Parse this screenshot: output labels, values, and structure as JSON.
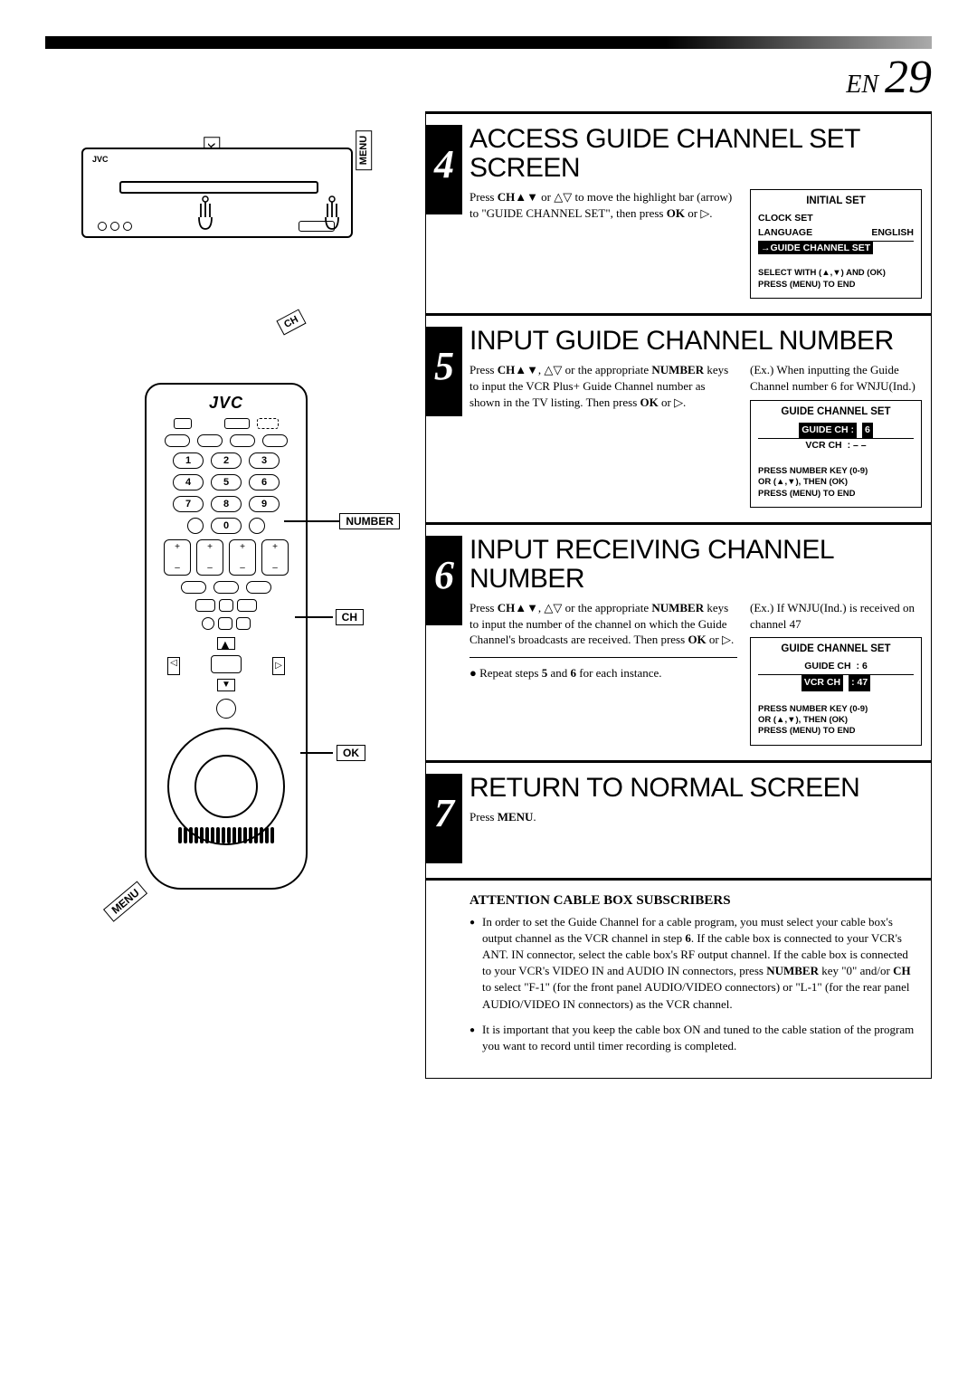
{
  "page": {
    "prefix": "EN",
    "number": "29"
  },
  "vcr": {
    "labels": {
      "ok": "OK",
      "menu": "MENU",
      "ch": "CH",
      "brand": "JVC"
    }
  },
  "remote": {
    "brand": "JVC",
    "callouts": {
      "number": "NUMBER",
      "ch": "CH",
      "ok": "OK",
      "menu": "MENU"
    },
    "numbers": [
      "1",
      "2",
      "3",
      "4",
      "5",
      "6",
      "7",
      "8",
      "9",
      "0"
    ]
  },
  "steps": [
    {
      "num": "4",
      "title": "ACCESS GUIDE CHANNEL SET SCREEN",
      "text": "Press <b>CH</b>▲▼ or △▽ to move the highlight bar (arrow) to \"GUIDE CHANNEL SET\", then press <b>OK</b> or ▷.",
      "osd": {
        "title": "INITIAL SET",
        "lines": [
          {
            "left": "CLOCK SET",
            "right": ""
          },
          {
            "left": "LANGUAGE",
            "right": "ENGLISH",
            "underline": true
          },
          {
            "left": "→GUIDE CHANNEL SET",
            "right": "",
            "hl": true
          }
        ],
        "foot": "SELECT WITH (▲,▼) AND (OK)\nPRESS (MENU) TO END"
      }
    },
    {
      "num": "5",
      "title": "INPUT GUIDE CHANNEL NUMBER",
      "text": "Press <b>CH</b>▲▼, △▽ or the appropriate <b>NUMBER</b> keys to input the VCR Plus+ Guide Channel number as shown in the TV listing. Then press <b>OK</b> or ▷.",
      "example": "(Ex.) When inputting the Guide Channel number 6 for WNJU(Ind.)",
      "osd": {
        "title": "GUIDE CHANNEL SET",
        "lines": [
          {
            "left": "GUIDE CH :",
            "right": "6",
            "hl": true,
            "underline": true
          },
          {
            "left": "VCR CH",
            "right": ": – –"
          }
        ],
        "foot": "PRESS NUMBER KEY (0-9)\nOR (▲,▼),  THEN (OK)\nPRESS (MENU) TO END"
      }
    },
    {
      "num": "6",
      "title": "INPUT RECEIVING CHANNEL NUMBER",
      "text": "Press <b>CH</b>▲▼, △▽ or the appropriate <b>NUMBER</b> keys to input the number of the channel on which the Guide Channel's broadcasts are received. Then press <b>OK</b> or ▷.",
      "example": "(Ex.) If WNJU(Ind.) is received on channel 47",
      "bullet": "Repeat steps <b>5</b> and <b>6</b> for each instance.",
      "osd": {
        "title": "GUIDE CHANNEL SET",
        "lines": [
          {
            "left": "GUIDE CH",
            "right": ": 6",
            "underline": true
          },
          {
            "left": "VCR CH",
            "right": ": 47",
            "hl": true
          }
        ],
        "foot": "PRESS NUMBER KEY (0-9)\nOR (▲,▼),  THEN (OK)\nPRESS (MENU) TO END"
      }
    },
    {
      "num": "7",
      "title": "RETURN TO NORMAL SCREEN",
      "text": "Press <b>MENU</b>."
    }
  ],
  "attention": {
    "heading": "ATTENTION CABLE BOX SUBSCRIBERS",
    "items": [
      "In order to set the Guide Channel for a cable program, you must select your cable box's output channel as the VCR channel in step <b>6</b>. If the cable box is connected to your VCR's ANT. IN connector, select the cable box's RF output channel. If the cable box is connected to your VCR's VIDEO IN and AUDIO IN connectors, press <b>NUMBER</b> key \"0\" and/or <b>CH</b> to select \"F-1\" (for the front panel AUDIO/VIDEO connectors) or \"L-1\" (for the rear panel AUDIO/VIDEO IN connectors) as the VCR channel.",
      "It is important that you keep the cable box ON and tuned to the cable station of the program you want to record until timer recording is completed."
    ]
  }
}
